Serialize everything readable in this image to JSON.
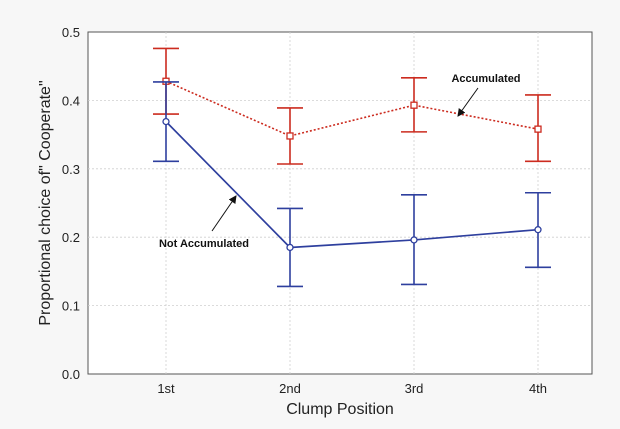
{
  "chart_data": {
    "type": "line",
    "title": "",
    "xlabel": "Clump Position",
    "ylabel": "Proportional choice of\" Cooperate\"",
    "categories": [
      "1st",
      "2nd",
      "3rd",
      "4th"
    ],
    "ylim": [
      0,
      0.5
    ],
    "yticks": [
      "0.0",
      "0.1",
      "0.2",
      "0.3",
      "0.4",
      "0.5"
    ],
    "grid": true,
    "series": [
      {
        "name": "Accumulated",
        "color": "#cc2b1f",
        "line_style": "dotted",
        "marker": "square",
        "values": [
          0.428,
          0.348,
          0.393,
          0.358
        ],
        "error_low": [
          0.38,
          0.307,
          0.354,
          0.311
        ],
        "error_high": [
          0.476,
          0.389,
          0.433,
          0.408
        ]
      },
      {
        "name": "Not Accumulated",
        "color": "#2e3f9e",
        "line_style": "solid",
        "marker": "circle",
        "values": [
          0.369,
          0.185,
          0.196,
          0.211
        ],
        "error_low": [
          0.311,
          0.128,
          0.131,
          0.156
        ],
        "error_high": [
          0.427,
          0.242,
          0.262,
          0.265
        ]
      }
    ],
    "annotations": [
      {
        "text": "Accumulated",
        "series": "Accumulated"
      },
      {
        "text": "Not Accumulated",
        "series": "Not Accumulated"
      }
    ]
  }
}
